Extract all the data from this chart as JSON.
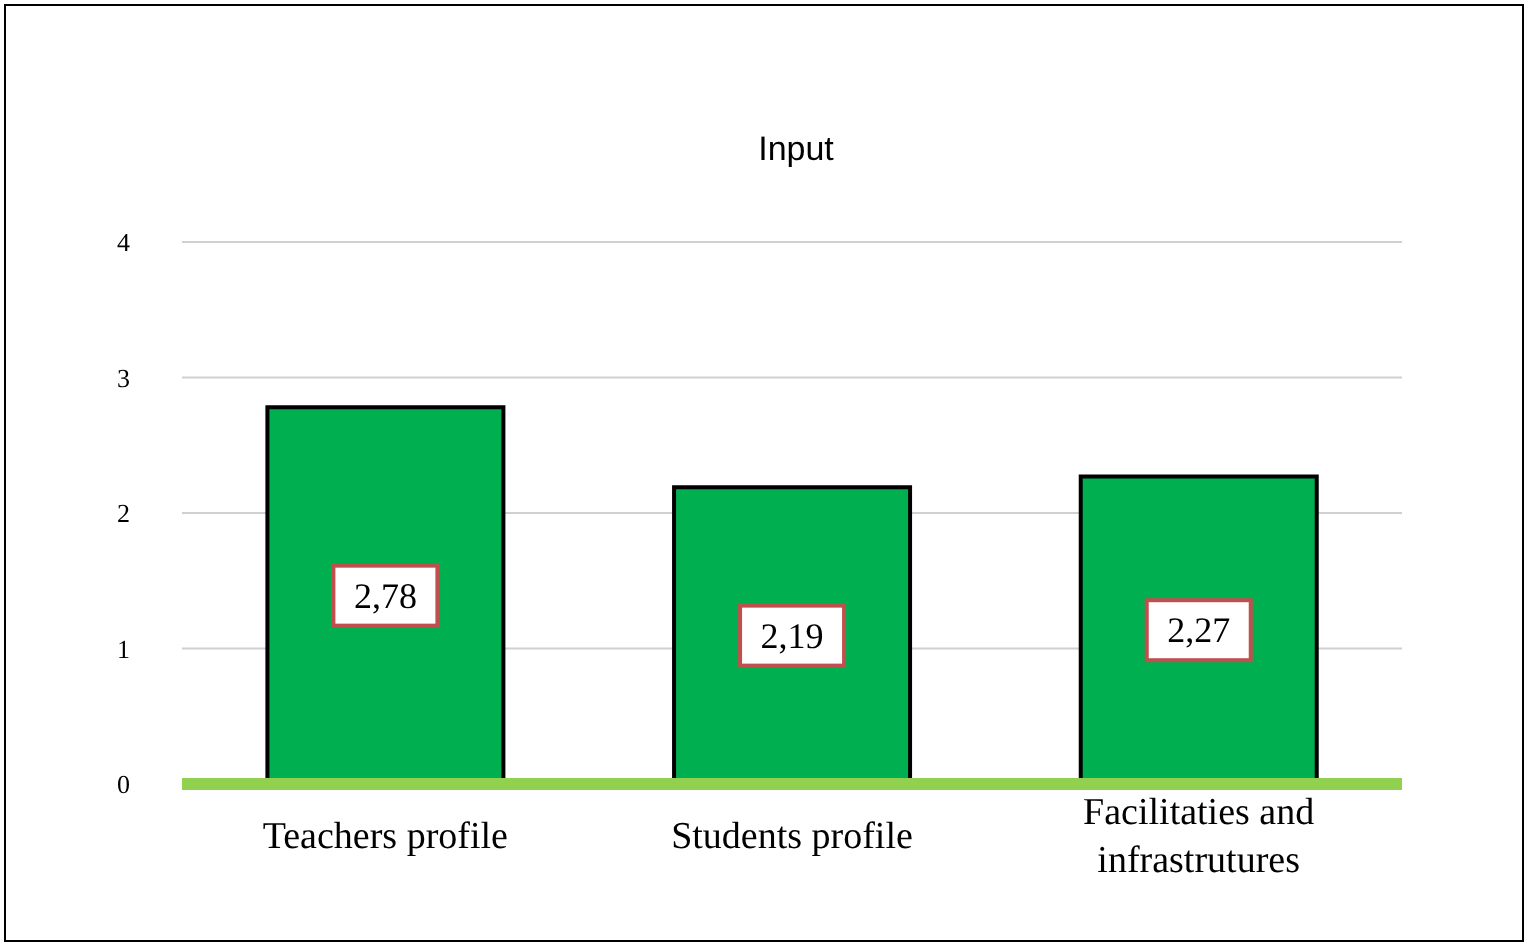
{
  "chart_data": {
    "type": "bar",
    "title": "Input",
    "categories": [
      "Teachers profile",
      "Students profile",
      "Facilitaties and infrastrutures"
    ],
    "values": [
      2.78,
      2.19,
      2.27
    ],
    "value_labels": [
      "2,78",
      "2,19",
      "2,27"
    ],
    "color": "#00b050",
    "ylim": [
      0,
      4
    ],
    "yticks": [
      0,
      1,
      2,
      3,
      4
    ],
    "grid": "y"
  }
}
